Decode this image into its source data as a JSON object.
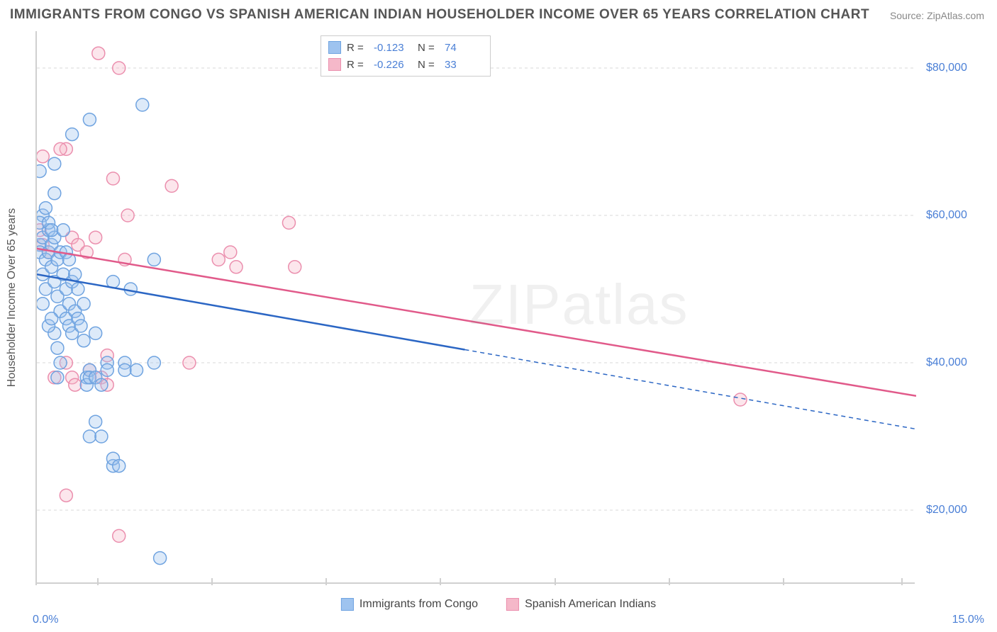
{
  "title": "IMMIGRANTS FROM CONGO VS SPANISH AMERICAN INDIAN HOUSEHOLDER INCOME OVER 65 YEARS CORRELATION CHART",
  "source_label": "Source: ZipAtlas.com",
  "watermark": "ZIPatlas",
  "ylabel": "Householder Income Over 65 years",
  "chart": {
    "type": "scatter",
    "background_color": "#ffffff",
    "grid_color": "#d8d8d8",
    "axis_color": "#d0d0d0",
    "tick_label_color": "#4a7fd6",
    "title_color": "#555555",
    "title_fontsize": 19,
    "tick_fontsize": 16,
    "label_fontsize": 16,
    "xlim": [
      0,
      15
    ],
    "ylim": [
      10000,
      85000
    ],
    "xticks": [
      0,
      15
    ],
    "xtick_labels": [
      "0.0%",
      "15.0%"
    ],
    "xtick_minor_positions_pct": [
      0,
      7,
      20,
      33,
      46,
      59,
      72,
      85,
      98.5
    ],
    "yticks": [
      20000,
      40000,
      60000,
      80000
    ],
    "ytick_labels": [
      "$20,000",
      "$40,000",
      "$60,000",
      "$80,000"
    ],
    "marker_radius": 9,
    "marker_fill_opacity": 0.35,
    "marker_stroke_width": 1.5,
    "line_width": 2.5
  },
  "series_a": {
    "label": "Immigrants from Congo",
    "color_fill": "#9ec3ef",
    "color_stroke": "#6fa3e0",
    "line_color": "#2b66c4",
    "r_value": "-0.123",
    "n_value": "74",
    "regression": {
      "x1": 0,
      "y1": 52000,
      "x2": 15,
      "y2": 31000,
      "solid_until_x": 7.3
    },
    "points": [
      [
        0.05,
        56000
      ],
      [
        0.05,
        55000
      ],
      [
        0.1,
        57000
      ],
      [
        0.1,
        52000
      ],
      [
        0.1,
        48000
      ],
      [
        0.15,
        54000
      ],
      [
        0.15,
        50000
      ],
      [
        0.1,
        60000
      ],
      [
        0.2,
        58000
      ],
      [
        0.2,
        55000
      ],
      [
        0.25,
        56000
      ],
      [
        0.25,
        53000
      ],
      [
        0.3,
        57000
      ],
      [
        0.3,
        51000
      ],
      [
        0.35,
        54000
      ],
      [
        0.35,
        49000
      ],
      [
        0.4,
        55000
      ],
      [
        0.4,
        47000
      ],
      [
        0.45,
        52000
      ],
      [
        0.5,
        50000
      ],
      [
        0.5,
        46000
      ],
      [
        0.55,
        48000
      ],
      [
        0.55,
        45000
      ],
      [
        0.6,
        51000
      ],
      [
        0.6,
        44000
      ],
      [
        0.65,
        47000
      ],
      [
        0.7,
        46000
      ],
      [
        0.7,
        50000
      ],
      [
        0.75,
        45000
      ],
      [
        0.8,
        48000
      ],
      [
        0.8,
        43000
      ],
      [
        0.85,
        38000
      ],
      [
        0.85,
        37000
      ],
      [
        0.9,
        39000
      ],
      [
        0.9,
        38000
      ],
      [
        0.9,
        30000
      ],
      [
        1.0,
        44000
      ],
      [
        1.0,
        38000
      ],
      [
        1.0,
        32000
      ],
      [
        1.1,
        37000
      ],
      [
        1.1,
        30000
      ],
      [
        1.2,
        40000
      ],
      [
        1.2,
        39000
      ],
      [
        1.3,
        26000
      ],
      [
        1.3,
        27000
      ],
      [
        1.3,
        51000
      ],
      [
        1.4,
        26000
      ],
      [
        1.5,
        40000
      ],
      [
        1.5,
        39000
      ],
      [
        1.6,
        50000
      ],
      [
        1.7,
        39000
      ],
      [
        1.8,
        75000
      ],
      [
        2.0,
        54000
      ],
      [
        2.0,
        40000
      ],
      [
        2.1,
        13500
      ],
      [
        0.6,
        71000
      ],
      [
        0.9,
        73000
      ],
      [
        0.3,
        67000
      ],
      [
        0.3,
        63000
      ],
      [
        0.05,
        66000
      ],
      [
        0.05,
        59000
      ],
      [
        0.15,
        61000
      ],
      [
        0.2,
        59000
      ],
      [
        0.25,
        58000
      ],
      [
        0.45,
        58000
      ],
      [
        0.5,
        55000
      ],
      [
        0.55,
        54000
      ],
      [
        0.65,
        52000
      ],
      [
        0.3,
        44000
      ],
      [
        0.35,
        42000
      ],
      [
        0.4,
        40000
      ],
      [
        0.2,
        45000
      ],
      [
        0.25,
        46000
      ],
      [
        0.35,
        38000
      ]
    ]
  },
  "series_b": {
    "label": "Spanish American Indians",
    "color_fill": "#f5b8c9",
    "color_stroke": "#eb8fae",
    "line_color": "#e15a8a",
    "r_value": "-0.226",
    "n_value": "33",
    "regression": {
      "x1": 0,
      "y1": 55500,
      "x2": 15,
      "y2": 35500,
      "solid_until_x": 15
    },
    "points": [
      [
        0.05,
        58000
      ],
      [
        0.1,
        56000
      ],
      [
        0.1,
        68000
      ],
      [
        0.5,
        69000
      ],
      [
        0.6,
        57000
      ],
      [
        0.7,
        56000
      ],
      [
        0.85,
        55000
      ],
      [
        1.0,
        57000
      ],
      [
        1.05,
        82000
      ],
      [
        1.3,
        65000
      ],
      [
        1.4,
        80000
      ],
      [
        1.5,
        54000
      ],
      [
        1.55,
        60000
      ],
      [
        0.3,
        38000
      ],
      [
        0.4,
        69000
      ],
      [
        0.5,
        40000
      ],
      [
        0.5,
        22000
      ],
      [
        0.6,
        38000
      ],
      [
        0.65,
        37000
      ],
      [
        0.9,
        39000
      ],
      [
        1.2,
        41000
      ],
      [
        1.4,
        16500
      ],
      [
        1.1,
        38000
      ],
      [
        1.2,
        37000
      ],
      [
        2.3,
        64000
      ],
      [
        2.6,
        40000
      ],
      [
        3.1,
        54000
      ],
      [
        3.3,
        55000
      ],
      [
        3.4,
        53000
      ],
      [
        4.3,
        59000
      ],
      [
        4.4,
        53000
      ],
      [
        12.0,
        35000
      ],
      [
        0.2,
        55000
      ]
    ]
  },
  "legend_top": {
    "r_label": "R =",
    "n_label": "N ="
  }
}
